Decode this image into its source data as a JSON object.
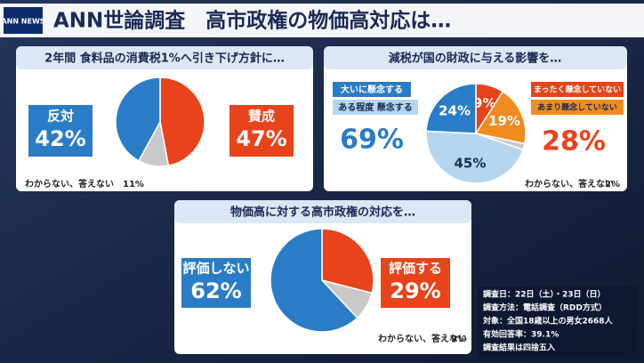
{
  "header": {
    "logo": "ANN NEWS",
    "title": "ANN世論調査　高市政権の物価高対応は…"
  },
  "chart_data": [
    {
      "type": "pie",
      "title": "2年間 食料品の消費税1%へ引き下げ方針に…",
      "categories": [
        "賛成",
        "わからない、答えない",
        "反対"
      ],
      "values": [
        47,
        11,
        42
      ],
      "value_labels": [
        "47%",
        "11%",
        "42%"
      ],
      "colors": [
        "#e8431a",
        "#c9c9c9",
        "#2b7cc6"
      ]
    },
    {
      "type": "pie",
      "title": "減税が国の財政に与える影響を…",
      "categories": [
        "まったく懸念していない",
        "あまり懸念していない",
        "わからない、答えない",
        "ある程度 懸念する",
        "大いに懸念する"
      ],
      "values": [
        9,
        19,
        2,
        45,
        24
      ],
      "value_labels": [
        "9%",
        "19%",
        "2%",
        "45%",
        "24%"
      ],
      "colors": [
        "#e8431a",
        "#f08c1e",
        "#c9c9c9",
        "#b5d6ee",
        "#2b7cc6"
      ],
      "groups": [
        {
          "value": 69,
          "value_label": "69%"
        },
        {
          "value": 28,
          "value_label": "28%"
        }
      ]
    },
    {
      "type": "pie",
      "title": "物価高に対する高市政権の対応を…",
      "categories": [
        "評価する",
        "わからない、答えない",
        "評価しない"
      ],
      "values": [
        29,
        9,
        62
      ],
      "value_labels": [
        "29%",
        "9%",
        "62%"
      ],
      "colors": [
        "#e8431a",
        "#c9c9c9",
        "#2b7cc6"
      ]
    }
  ],
  "notes": [
    "調査日：22日（土）・23日（日）",
    "調査方法：電話調査（RDD方式）",
    "対象：全国18歳以上の男女2668人",
    "有効回答率：39.1%",
    "調査結果は四捨五入"
  ]
}
